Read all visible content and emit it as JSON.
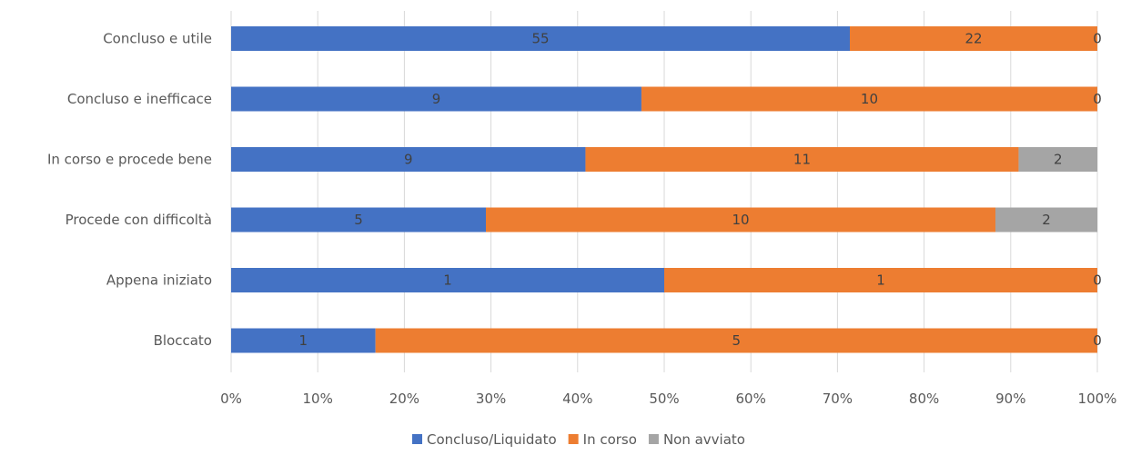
{
  "chart_data": {
    "type": "bar",
    "orientation": "horizontal",
    "stacking": "percent",
    "categories": [
      "Concluso e utile",
      "Concluso e inefficace",
      "In corso e procede bene",
      "Procede con difficoltà",
      "Appena iniziato",
      "Bloccato"
    ],
    "series": [
      {
        "name": "Concluso/Liquidato",
        "color": "#4472c4",
        "values": [
          55,
          9,
          9,
          5,
          1,
          1
        ]
      },
      {
        "name": "In corso",
        "color": "#ed7d31",
        "values": [
          22,
          10,
          11,
          10,
          1,
          5
        ]
      },
      {
        "name": "Non avviato",
        "color": "#a5a5a5",
        "values": [
          0,
          0,
          2,
          2,
          0,
          0
        ]
      }
    ],
    "xticks": [
      "0%",
      "10%",
      "20%",
      "30%",
      "40%",
      "50%",
      "60%",
      "70%",
      "80%",
      "90%",
      "100%"
    ],
    "xlim": [
      0,
      100
    ],
    "grid": true,
    "legend_position": "bottom",
    "data_labels": true
  }
}
